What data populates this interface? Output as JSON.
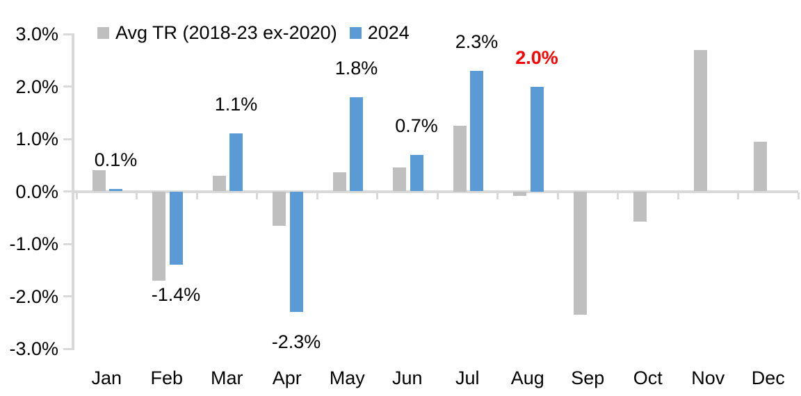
{
  "chart_data": {
    "type": "bar",
    "title": "",
    "categories": [
      "Jan",
      "Feb",
      "Mar",
      "Apr",
      "May",
      "Jun",
      "Jul",
      "Aug",
      "Sep",
      "Oct",
      "Nov",
      "Dec"
    ],
    "series": [
      {
        "name": "Avg TR (2018-23 ex-2020)",
        "color": "#bfbfbf",
        "values": [
          0.4,
          -1.7,
          0.3,
          -0.65,
          0.36,
          0.46,
          1.25,
          -0.08,
          -2.35,
          -0.57,
          2.7,
          0.95
        ]
      },
      {
        "name": "2024",
        "color": "#5b9bd5",
        "values": [
          0.05,
          -1.4,
          1.1,
          -2.3,
          1.8,
          0.7,
          2.3,
          2.0,
          null,
          null,
          null,
          null
        ]
      }
    ],
    "data_labels": [
      {
        "category": "Jan",
        "text": "0.1%",
        "color": "#000000",
        "bold": false
      },
      {
        "category": "Feb",
        "text": "-1.4%",
        "color": "#000000",
        "bold": false
      },
      {
        "category": "Mar",
        "text": "1.1%",
        "color": "#000000",
        "bold": false
      },
      {
        "category": "Apr",
        "text": "-2.3%",
        "color": "#000000",
        "bold": false
      },
      {
        "category": "May",
        "text": "1.8%",
        "color": "#000000",
        "bold": false
      },
      {
        "category": "Jun",
        "text": "0.7%",
        "color": "#000000",
        "bold": false
      },
      {
        "category": "Jul",
        "text": "2.3%",
        "color": "#000000",
        "bold": false
      },
      {
        "category": "Aug",
        "text": "2.0%",
        "color": "#ff0000",
        "bold": true
      }
    ],
    "y_axis": {
      "ticks": [
        "3.0%",
        "2.0%",
        "1.0%",
        "0.0%",
        "-1.0%",
        "-2.0%",
        "-3.0%"
      ],
      "tick_values": [
        3,
        2,
        1,
        0,
        -1,
        -2,
        -3
      ],
      "ylim": [
        -3.0,
        3.0
      ]
    },
    "x_axis": {
      "label": ""
    },
    "legend": {
      "position": "top",
      "entries": [
        "Avg TR (2018-23 ex-2020)",
        "2024"
      ]
    },
    "grid": false,
    "axis_color": "#d9d9d9",
    "background": "#ffffff"
  }
}
